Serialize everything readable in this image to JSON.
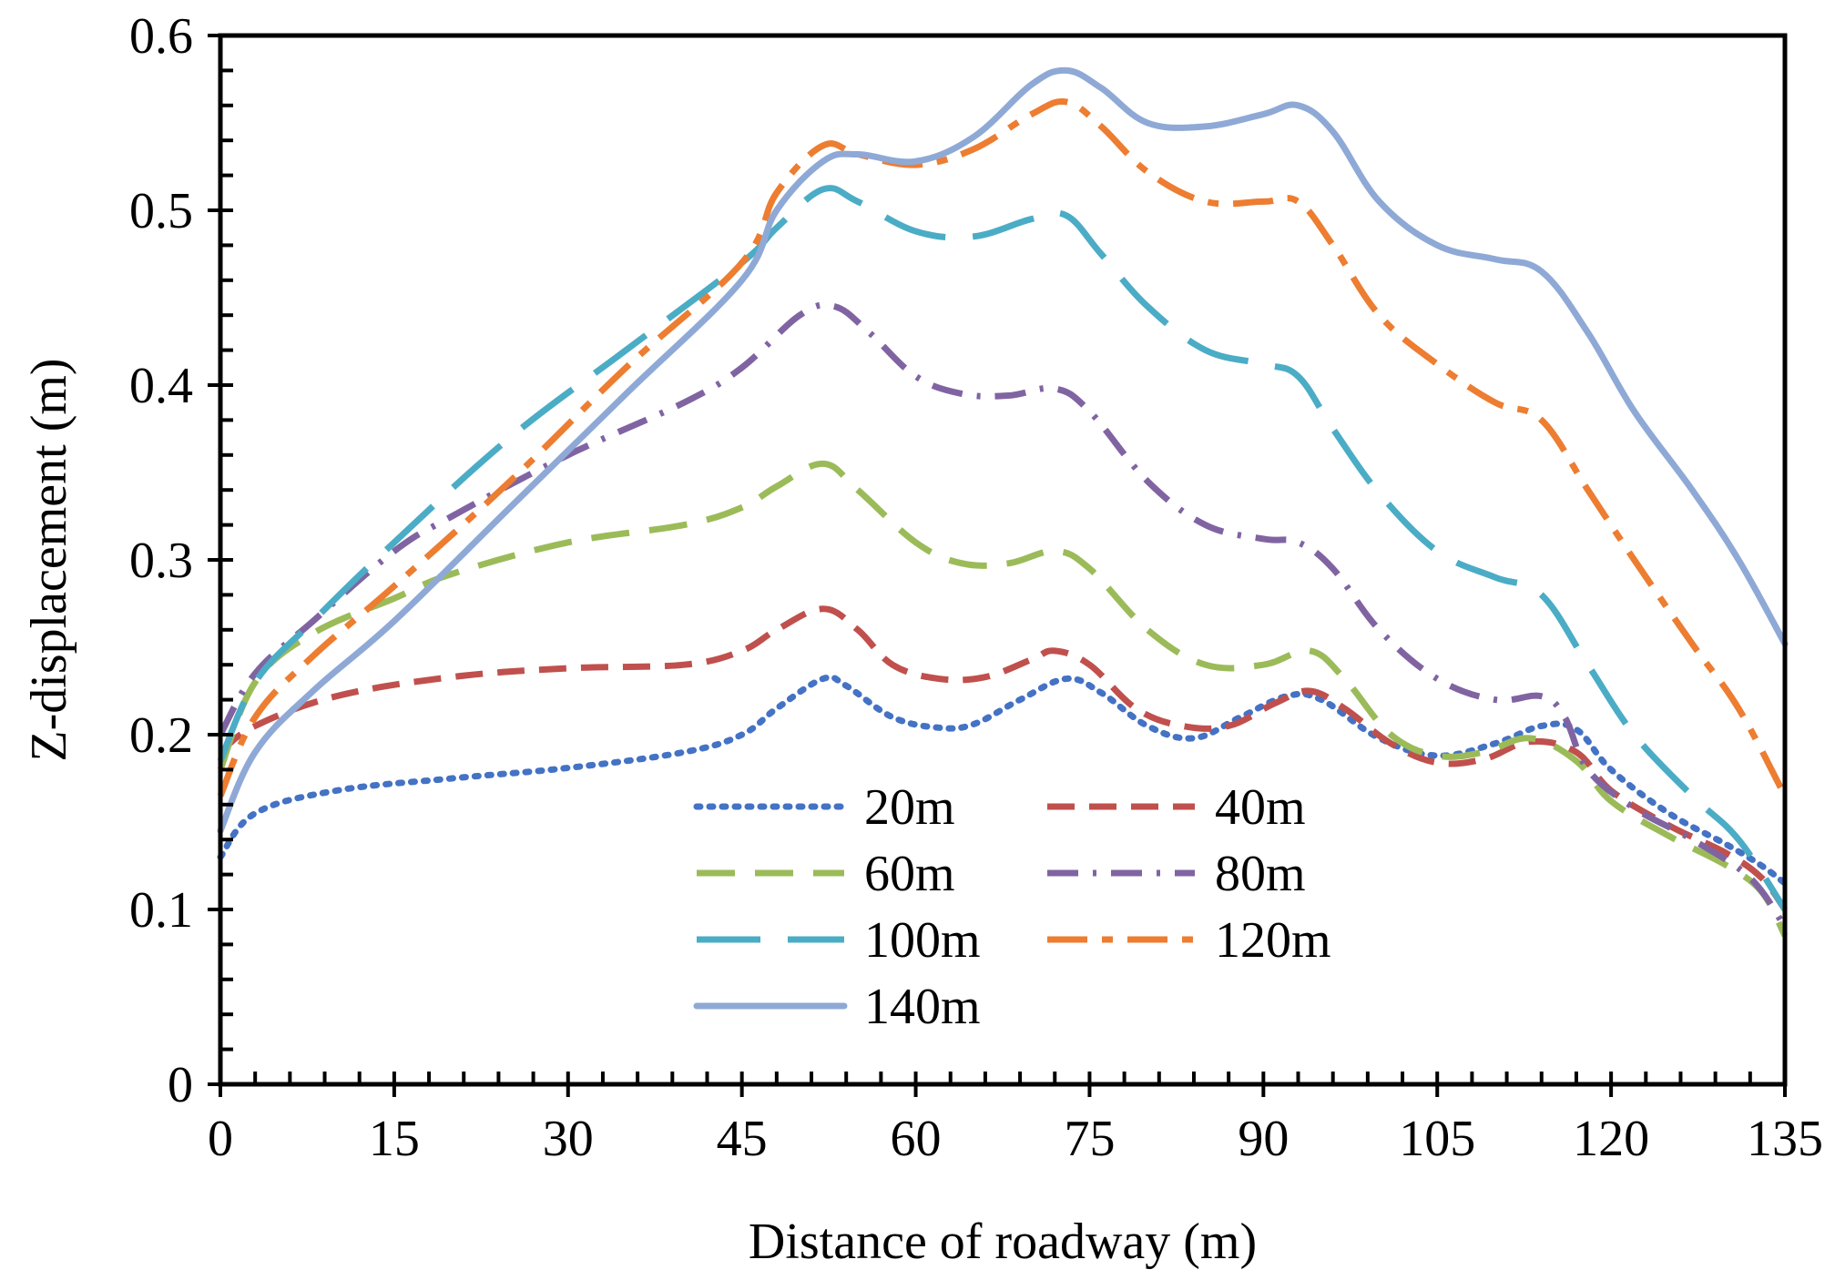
{
  "chart_data": {
    "type": "line",
    "xlabel": "Distance of roadway (m)",
    "ylabel": "Z-displacement (m)",
    "xlim": [
      0,
      135
    ],
    "ylim": [
      0,
      0.6
    ],
    "xticks": [
      0,
      15,
      30,
      45,
      60,
      75,
      90,
      105,
      120,
      135
    ],
    "yticks": [
      0,
      0.1,
      0.2,
      0.3,
      0.4,
      0.5,
      0.6
    ],
    "ytick_labels": [
      "0",
      "0.1",
      "0.2",
      "0.3",
      "0.4",
      "0.5",
      "0.6"
    ],
    "grid": false,
    "legend_position": "bottom-center",
    "series": [
      {
        "name": "20m",
        "color": "#4472C4",
        "style": "dotted",
        "x": [
          0,
          3,
          10,
          20,
          30,
          40,
          45,
          48,
          52,
          54,
          58,
          62,
          65,
          69,
          73,
          76,
          80,
          84,
          88,
          92,
          95,
          100,
          105,
          110,
          114,
          117,
          120,
          125,
          130,
          133,
          135
        ],
        "y": [
          0.13,
          0.155,
          0.168,
          0.175,
          0.181,
          0.19,
          0.2,
          0.215,
          0.232,
          0.228,
          0.21,
          0.204,
          0.206,
          0.22,
          0.232,
          0.224,
          0.205,
          0.198,
          0.21,
          0.222,
          0.22,
          0.198,
          0.188,
          0.195,
          0.205,
          0.203,
          0.18,
          0.155,
          0.137,
          0.125,
          0.115
        ]
      },
      {
        "name": "40m",
        "color": "#C0504D",
        "style": "dashed",
        "x": [
          0,
          3,
          10,
          20,
          30,
          40,
          45,
          48,
          52,
          55,
          58,
          62,
          66,
          70,
          72,
          75,
          79,
          83,
          87,
          91,
          94,
          97,
          101,
          105,
          109,
          113,
          117,
          120,
          125,
          130,
          133,
          135
        ],
        "y": [
          0.19,
          0.205,
          0.222,
          0.233,
          0.238,
          0.24,
          0.248,
          0.26,
          0.272,
          0.26,
          0.24,
          0.232,
          0.233,
          0.243,
          0.248,
          0.24,
          0.215,
          0.205,
          0.205,
          0.218,
          0.225,
          0.215,
          0.195,
          0.184,
          0.186,
          0.196,
          0.19,
          0.168,
          0.148,
          0.132,
          0.118,
          0.1
        ]
      },
      {
        "name": "60m",
        "color": "#9BBB59",
        "style": "dashed-long",
        "x": [
          0,
          3,
          8,
          15,
          20,
          30,
          40,
          45,
          48,
          52,
          55,
          60,
          64,
          68,
          72,
          75,
          80,
          85,
          90,
          94,
          97,
          101,
          105,
          109,
          113,
          117,
          120,
          125,
          130,
          133,
          135
        ],
        "y": [
          0.18,
          0.23,
          0.258,
          0.278,
          0.292,
          0.31,
          0.32,
          0.33,
          0.342,
          0.355,
          0.34,
          0.31,
          0.298,
          0.298,
          0.305,
          0.295,
          0.26,
          0.24,
          0.24,
          0.248,
          0.232,
          0.2,
          0.188,
          0.19,
          0.198,
          0.185,
          0.162,
          0.142,
          0.125,
          0.11,
          0.085
        ]
      },
      {
        "name": "80m",
        "color": "#8064A2",
        "style": "dash-dot",
        "x": [
          0,
          3,
          8,
          15,
          20,
          30,
          40,
          45,
          50,
          53,
          56,
          60,
          64,
          68,
          72,
          75,
          80,
          85,
          90,
          93,
          96,
          100,
          105,
          110,
          114,
          116,
          118,
          122,
          127,
          132,
          135
        ],
        "y": [
          0.2,
          0.235,
          0.265,
          0.305,
          0.325,
          0.36,
          0.39,
          0.41,
          0.44,
          0.445,
          0.43,
          0.405,
          0.395,
          0.394,
          0.398,
          0.385,
          0.345,
          0.32,
          0.312,
          0.31,
          0.295,
          0.26,
          0.232,
          0.22,
          0.222,
          0.21,
          0.18,
          0.158,
          0.14,
          0.118,
          0.09
        ]
      },
      {
        "name": "100m",
        "color": "#4BACC6",
        "style": "long-dash",
        "x": [
          0,
          3,
          8,
          15,
          25,
          35,
          45,
          48,
          52,
          55,
          60,
          65,
          70,
          73,
          76,
          80,
          85,
          90,
          93,
          96,
          100,
          105,
          110,
          114,
          118,
          122,
          127,
          131,
          135
        ],
        "y": [
          0.185,
          0.23,
          0.265,
          0.31,
          0.37,
          0.42,
          0.47,
          0.49,
          0.512,
          0.505,
          0.488,
          0.485,
          0.495,
          0.497,
          0.475,
          0.445,
          0.42,
          0.412,
          0.405,
          0.375,
          0.338,
          0.305,
          0.29,
          0.28,
          0.24,
          0.2,
          0.165,
          0.14,
          0.1
        ]
      },
      {
        "name": "120m",
        "color": "#ED7D31",
        "style": "dash-dot-long",
        "x": [
          0,
          3,
          8,
          15,
          25,
          35,
          45,
          48,
          52,
          55,
          60,
          65,
          70,
          73,
          76,
          80,
          85,
          90,
          93,
          96,
          100,
          105,
          110,
          114,
          118,
          122,
          127,
          131,
          135
        ],
        "y": [
          0.165,
          0.21,
          0.245,
          0.285,
          0.345,
          0.41,
          0.47,
          0.51,
          0.537,
          0.532,
          0.526,
          0.535,
          0.555,
          0.562,
          0.548,
          0.522,
          0.505,
          0.505,
          0.505,
          0.48,
          0.44,
          0.412,
          0.39,
          0.38,
          0.34,
          0.3,
          0.252,
          0.215,
          0.165
        ]
      },
      {
        "name": "140m",
        "color": "#8FA9D6",
        "style": "solid",
        "x": [
          0,
          3,
          8,
          15,
          25,
          35,
          45,
          48,
          52,
          55,
          60,
          65,
          70,
          73,
          76,
          80,
          85,
          90,
          93,
          96,
          100,
          105,
          110,
          114,
          118,
          122,
          127,
          131,
          135
        ],
        "y": [
          0.145,
          0.19,
          0.225,
          0.265,
          0.33,
          0.395,
          0.46,
          0.5,
          0.528,
          0.532,
          0.528,
          0.542,
          0.572,
          0.58,
          0.57,
          0.55,
          0.548,
          0.555,
          0.56,
          0.545,
          0.505,
          0.48,
          0.472,
          0.465,
          0.43,
          0.385,
          0.34,
          0.3,
          0.252
        ]
      }
    ]
  }
}
